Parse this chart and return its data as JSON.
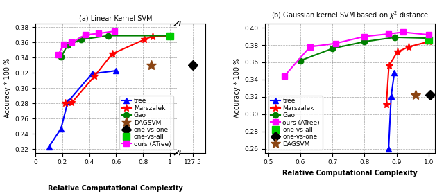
{
  "left": {
    "title": "(a) Linear Kernel SVM",
    "xlabel": "Relative Computational Complexity",
    "ylabel": "Accuracy * 100 %",
    "ylim": [
      0.215,
      0.385
    ],
    "xlim_main": [
      0.0,
      1.05
    ],
    "xlim_break": [
      125.0,
      130.0
    ],
    "xticks_main": [
      0,
      0.2,
      0.4,
      0.6,
      0.8,
      1.0
    ],
    "xtick_break": 127.5,
    "yticks": [
      0.22,
      0.24,
      0.26,
      0.28,
      0.3,
      0.32,
      0.34,
      0.36,
      0.38
    ],
    "series": {
      "tree": {
        "x": [
          0.1,
          0.19,
          0.24,
          0.42,
          0.6
        ],
        "y": [
          0.223,
          0.247,
          0.282,
          0.319,
          0.323
        ],
        "color": "blue",
        "marker": "^",
        "markersize": 6,
        "linewidth": 1.5
      },
      "Marszalek": {
        "x": [
          0.22,
          0.27,
          0.44,
          0.57,
          0.81,
          0.87,
          1.0
        ],
        "y": [
          0.28,
          0.281,
          0.316,
          0.345,
          0.364,
          0.368,
          0.368
        ],
        "color": "red",
        "marker": "*",
        "markersize": 8,
        "linewidth": 1.5
      },
      "Gao": {
        "x": [
          0.19,
          0.24,
          0.34,
          0.54,
          1.0
        ],
        "y": [
          0.341,
          0.357,
          0.364,
          0.369,
          0.369
        ],
        "color": "green",
        "marker": "o",
        "markersize": 6,
        "linewidth": 1.5
      },
      "DAGSVM": {
        "x": [
          0.86
        ],
        "y": [
          0.33
        ],
        "color": "#8B4513",
        "marker": "*",
        "markersize": 10,
        "linewidth": 0
      },
      "one-vs-one": {
        "x": [
          127.5
        ],
        "y": [
          0.33
        ],
        "color": "black",
        "marker": "D",
        "markersize": 7,
        "linewidth": 0,
        "in_break": true
      },
      "one-vs-all": {
        "x": [
          1.0
        ],
        "y": [
          0.369
        ],
        "color": "#00CC00",
        "marker": "s",
        "markersize": 7,
        "linewidth": 0
      },
      "ours (ATree)": {
        "x": [
          0.17,
          0.21,
          0.27,
          0.37,
          0.47,
          0.59
        ],
        "y": [
          0.344,
          0.358,
          0.36,
          0.37,
          0.372,
          0.375
        ],
        "color": "magenta",
        "marker": "s",
        "markersize": 6,
        "linewidth": 1.5
      }
    },
    "legend_order": [
      "tree",
      "Marszalek",
      "Gao",
      "DAGSVM",
      "one-vs-one",
      "one-vs-all",
      "ours (ATree)"
    ]
  },
  "right": {
    "title": "(b) Gaussian kernel SVM based on $\\chi^2$ distance",
    "xlabel": "Relative Computational Complexity",
    "ylabel": "Accuracy * 100 %",
    "ylim": [
      0.255,
      0.405
    ],
    "xlim": [
      0.49,
      1.02
    ],
    "xticks": [
      0.5,
      0.6,
      0.7,
      0.8,
      0.9,
      1.0
    ],
    "yticks": [
      0.26,
      0.28,
      0.3,
      0.32,
      0.34,
      0.36,
      0.38,
      0.4
    ],
    "series": {
      "tree": {
        "x": [
          0.875,
          0.883,
          0.893
        ],
        "y": [
          0.26,
          0.321,
          0.348
        ],
        "color": "blue",
        "marker": "^",
        "markersize": 6,
        "linewidth": 1.5
      },
      "Marszalek": {
        "x": [
          0.868,
          0.876,
          0.902,
          0.938,
          1.0
        ],
        "y": [
          0.311,
          0.356,
          0.372,
          0.378,
          0.384
        ],
        "color": "red",
        "marker": "*",
        "markersize": 8,
        "linewidth": 1.5
      },
      "Gao": {
        "x": [
          0.6,
          0.7,
          0.8,
          0.895,
          1.0
        ],
        "y": [
          0.362,
          0.376,
          0.384,
          0.389,
          0.388
        ],
        "color": "green",
        "marker": "o",
        "markersize": 6,
        "linewidth": 1.5
      },
      "DAGSVM": {
        "x": [
          0.958
        ],
        "y": [
          0.322
        ],
        "color": "#8B4513",
        "marker": "*",
        "markersize": 10,
        "linewidth": 0
      },
      "one-vs-one": {
        "x": [
          1.005
        ],
        "y": [
          0.322
        ],
        "color": "black",
        "marker": "D",
        "markersize": 7,
        "linewidth": 0
      },
      "one-vs-all": {
        "x": [
          1.0
        ],
        "y": [
          0.386
        ],
        "color": "#00CC00",
        "marker": "s",
        "markersize": 7,
        "linewidth": 0
      },
      "ours (ATree)": {
        "x": [
          0.55,
          0.63,
          0.71,
          0.8,
          0.875,
          0.92,
          1.0
        ],
        "y": [
          0.344,
          0.378,
          0.382,
          0.39,
          0.393,
          0.395,
          0.392
        ],
        "color": "magenta",
        "marker": "s",
        "markersize": 6,
        "linewidth": 1.5
      }
    },
    "legend_order": [
      "tree",
      "Marszalek",
      "Gao",
      "ours (ATree)",
      "one-vs-all",
      "one-vs-one",
      "DAGSVM"
    ]
  },
  "axis_label_fontsize": 7,
  "tick_fontsize": 6.5,
  "legend_fontsize": 6.5,
  "title_fontsize": 7
}
